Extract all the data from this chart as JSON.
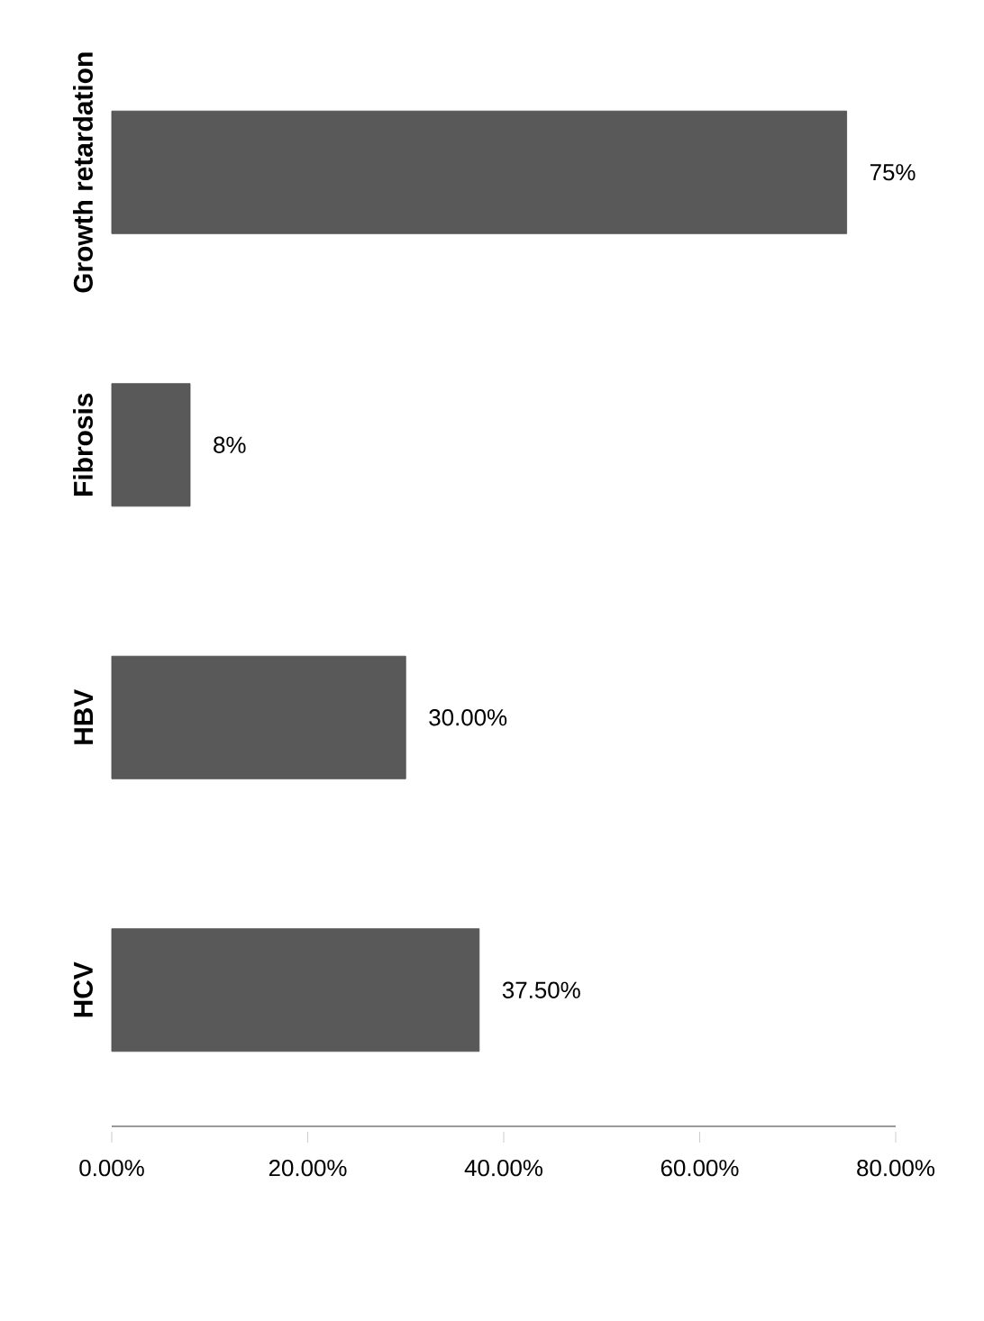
{
  "chart_data": {
    "type": "bar",
    "orientation": "horizontal",
    "categories": [
      "Growth retardation",
      "Fibrosis",
      "HBV",
      "HCV"
    ],
    "values": [
      75,
      8,
      30,
      37.5
    ],
    "value_labels": [
      "75%",
      "8%",
      "30.00%",
      "37.50%"
    ],
    "color": "#595959",
    "xlim": [
      0,
      80
    ],
    "xticks": [
      {
        "value": 0,
        "label": "0.00%"
      },
      {
        "value": 20,
        "label": "20.00%"
      },
      {
        "value": 40,
        "label": "40.00%"
      },
      {
        "value": 60,
        "label": "60.00%"
      },
      {
        "value": 80,
        "label": "80.00%"
      }
    ],
    "grid": false
  }
}
